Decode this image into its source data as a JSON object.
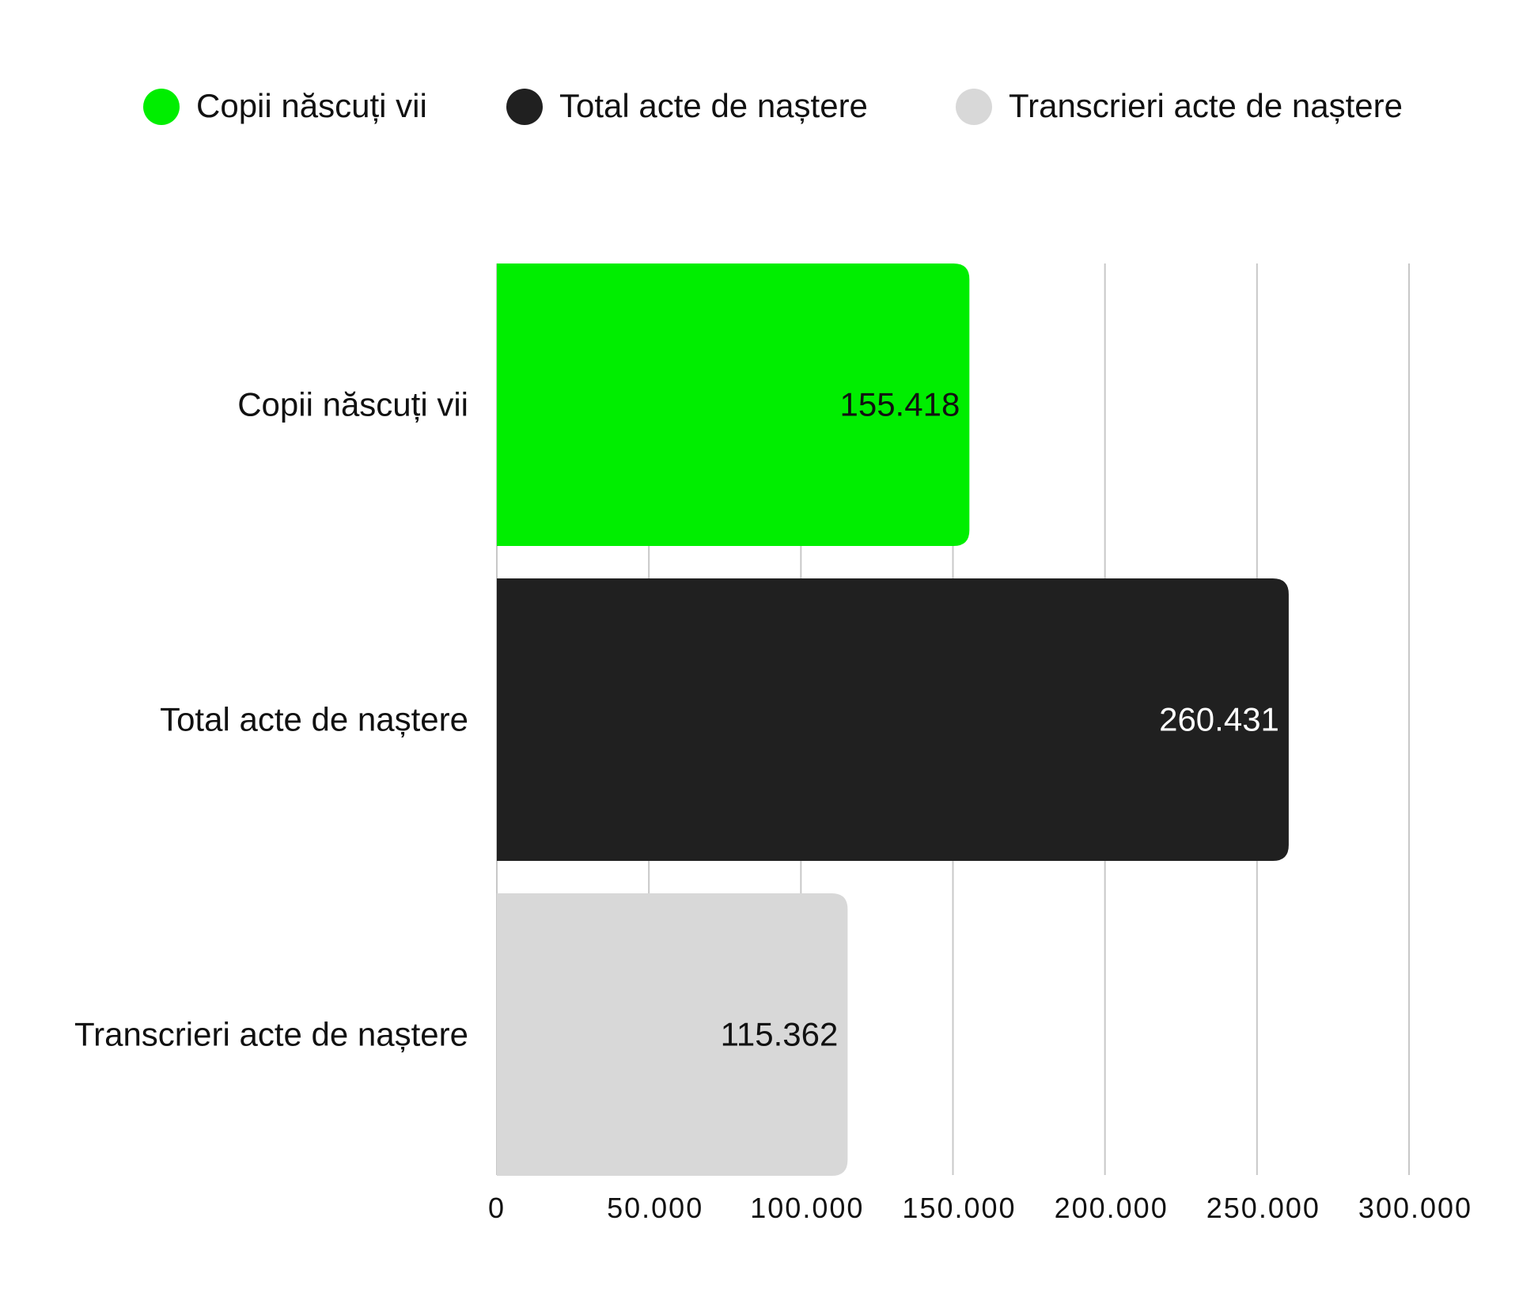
{
  "colors": {
    "background": "#ffffff",
    "gridline": "#c8c8c8",
    "text": "#111111"
  },
  "chart_data": {
    "type": "bar",
    "orientation": "horizontal",
    "categories": [
      "Copii născuți vii",
      "Total acte de naștere",
      "Transcrieri acte de naștere"
    ],
    "values": [
      155418,
      260431,
      115362
    ],
    "value_labels": [
      "155.418",
      "260.431",
      "115.362"
    ],
    "bar_colors": [
      "#00ee00",
      "#202020",
      "#d8d8d8"
    ],
    "label_colors": [
      "#111111",
      "#ffffff",
      "#111111"
    ],
    "legend": {
      "placement": "top",
      "items": [
        {
          "label": "Copii născuți vii",
          "color": "#00ee00"
        },
        {
          "label": "Total acte de naștere",
          "color": "#202020"
        },
        {
          "label": "Transcrieri acte de naștere",
          "color": "#d8d8d8"
        }
      ]
    },
    "x_ticks": [
      0,
      50000,
      100000,
      150000,
      200000,
      250000,
      300000
    ],
    "x_tick_labels": [
      "0",
      "50.000",
      "100.000",
      "150.000",
      "200.000",
      "250.000",
      "300.000"
    ],
    "xlim": [
      0,
      300000
    ],
    "grid": true,
    "title": "",
    "xlabel": "",
    "ylabel": ""
  }
}
